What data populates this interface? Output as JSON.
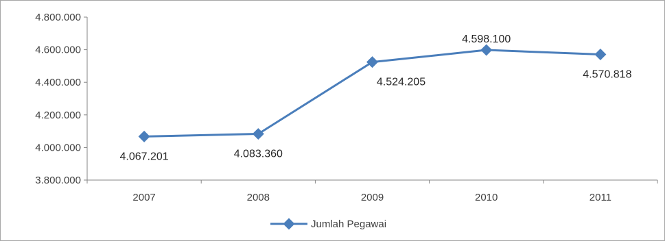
{
  "chart_data": {
    "type": "line",
    "categories": [
      "2007",
      "2008",
      "2009",
      "2010",
      "2011"
    ],
    "series": [
      {
        "name": "Jumlah Pegawai",
        "values": [
          4067201,
          4083360,
          4524205,
          4598100,
          4570818
        ],
        "labels": [
          "4.067.201",
          "4.083.360",
          "4.524.205",
          "4.598.100",
          "4.570.818"
        ],
        "color": "#4a7ebb"
      }
    ],
    "ylim": [
      3800000,
      4800000
    ],
    "yticks": [
      {
        "value": 3800000,
        "label": "3.800.000"
      },
      {
        "value": 4000000,
        "label": "4.000.000"
      },
      {
        "value": 4200000,
        "label": "4.200.000"
      },
      {
        "value": 4400000,
        "label": "4.400.000"
      },
      {
        "value": 4600000,
        "label": "4.600.000"
      },
      {
        "value": 4800000,
        "label": "4.800.000"
      }
    ],
    "grid": false,
    "legend": "bottom"
  }
}
